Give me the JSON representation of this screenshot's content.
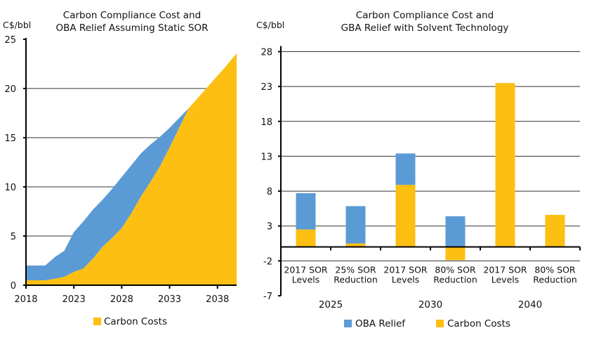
{
  "colors": {
    "oba_relief": "#5B9BD5",
    "carbon_costs": "#FCBF12"
  },
  "chart_data": [
    {
      "type": "area",
      "stacked": true,
      "title": [
        "Carbon Compliance Cost and",
        "OBA Relief Assuming Static SOR"
      ],
      "ylabel": "C$/bbl",
      "ylim": [
        0,
        25
      ],
      "yticks": [
        "0",
        "5",
        "10",
        "15",
        "20",
        "25"
      ],
      "xlim": [
        2018,
        2040
      ],
      "xticks": [
        "2018",
        "2023",
        "2028",
        "2033",
        "2038"
      ],
      "grid": true,
      "legend_position": "bottom",
      "legend": [
        "Carbon Costs"
      ],
      "x": [
        2018,
        2019,
        2020,
        2021,
        2022,
        2023,
        2024,
        2025,
        2026,
        2027,
        2028,
        2029,
        2030,
        2031,
        2032,
        2033,
        2034,
        2035,
        2036,
        2037,
        2038,
        2039,
        2040
      ],
      "series": [
        {
          "name": "Carbon Costs",
          "values": [
            0.5,
            0.5,
            0.5,
            0.65,
            0.85,
            1.35,
            1.7,
            2.7,
            3.9,
            4.8,
            5.8,
            7.3,
            9.0,
            10.5,
            12.1,
            14.0,
            16.0,
            18.0,
            19.1,
            20.2,
            21.3,
            22.4,
            23.6
          ]
        },
        {
          "values": [
            1.5,
            1.5,
            1.5,
            2.2,
            2.65,
            4.05,
            4.8,
            5.0,
            4.8,
            5.0,
            5.2,
            4.9,
            4.4,
            3.8,
            3.0,
            2.0,
            1.0,
            0,
            0,
            0,
            0,
            0,
            0
          ]
        }
      ]
    },
    {
      "type": "bar",
      "stacked": true,
      "title": [
        "Carbon Compliance Cost and",
        "GBA Relief with Solvent Technology"
      ],
      "ylabel": "C$/bbl",
      "ylim": [
        -7,
        28
      ],
      "yticks": [
        "-7",
        "-2",
        "3",
        "8",
        "13",
        "18",
        "23",
        "28"
      ],
      "grid": true,
      "legend_position": "bottom",
      "categories": [
        [
          "2017 SOR",
          "Levels"
        ],
        [
          "25% SOR",
          "Reduction"
        ],
        [
          "2017 SOR",
          "Levels"
        ],
        [
          "80% SOR",
          "Reduction"
        ],
        [
          "2017 SOR",
          "Levels"
        ],
        [
          "80% SOR",
          "Reduction"
        ]
      ],
      "groups": [
        "2025",
        "2030",
        "2040"
      ],
      "series": [
        {
          "name": "OBA Relief",
          "values": [
            5.2,
            5.35,
            4.5,
            4.4,
            0,
            0
          ]
        },
        {
          "name": "Carbon Costs",
          "values": [
            2.5,
            0.5,
            8.9,
            -1.9,
            23.5,
            4.6
          ]
        }
      ]
    }
  ]
}
